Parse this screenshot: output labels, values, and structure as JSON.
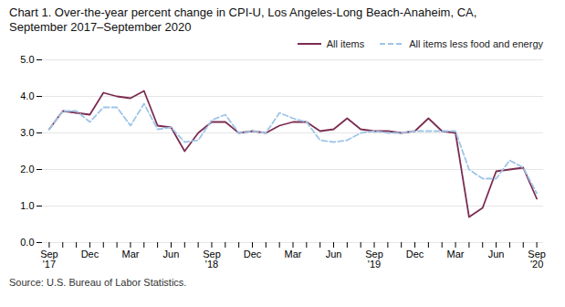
{
  "chart_data": {
    "type": "line",
    "title": "Chart 1. Over-the-year percent change in CPI-U, Los Angeles-Long Beach-Anaheim, CA,\nSeptember 2017–September 2020",
    "caption": "Source: U.S. Bureau of Labor Statistics.",
    "categories": [
      "Sep\n'17",
      null,
      null,
      "Dec",
      null,
      null,
      "Mar",
      null,
      null,
      "Jun",
      null,
      null,
      "Sep\n'18",
      null,
      null,
      "Dec",
      null,
      null,
      "Mar",
      null,
      null,
      "Jun",
      null,
      null,
      "Sep\n'19",
      null,
      null,
      "Dec",
      null,
      null,
      "Mar",
      null,
      null,
      "Jun",
      null,
      null,
      "Sep\n'20"
    ],
    "series": [
      {
        "name": "All items",
        "color": "#7b2d52",
        "line_style": "solid",
        "values": [
          3.1,
          3.6,
          3.55,
          3.5,
          4.1,
          4.0,
          3.95,
          4.15,
          3.2,
          3.15,
          2.5,
          3.0,
          3.3,
          3.3,
          3.0,
          3.05,
          3.0,
          3.2,
          3.3,
          3.3,
          3.05,
          3.1,
          3.4,
          3.1,
          3.05,
          3.05,
          3.0,
          3.05,
          3.4,
          3.05,
          3.0,
          0.7,
          0.95,
          1.95,
          2.0,
          2.05,
          1.2
        ]
      },
      {
        "name": "All items less food and energy",
        "color": "#9fc5e8",
        "line_style": "dashed",
        "values": [
          3.1,
          3.6,
          3.6,
          3.3,
          3.7,
          3.7,
          3.2,
          3.8,
          3.1,
          3.15,
          2.75,
          2.8,
          3.35,
          3.5,
          3.0,
          3.05,
          3.0,
          3.55,
          3.4,
          3.3,
          2.8,
          2.75,
          2.8,
          3.0,
          3.05,
          3.0,
          3.0,
          3.05,
          3.05,
          3.05,
          3.05,
          2.0,
          1.75,
          1.75,
          2.25,
          2.05,
          1.35
        ]
      }
    ],
    "ylim": [
      0.0,
      5.0
    ],
    "yticks": [
      {
        "value": 0,
        "label": "0.0"
      },
      {
        "value": 1,
        "label": "1.0"
      },
      {
        "value": 2,
        "label": "2.0"
      },
      {
        "value": 3,
        "label": "3.0"
      },
      {
        "value": 4,
        "label": "4.0"
      },
      {
        "value": 5,
        "label": "5.0"
      }
    ],
    "grid": true,
    "legend": "upper right"
  }
}
